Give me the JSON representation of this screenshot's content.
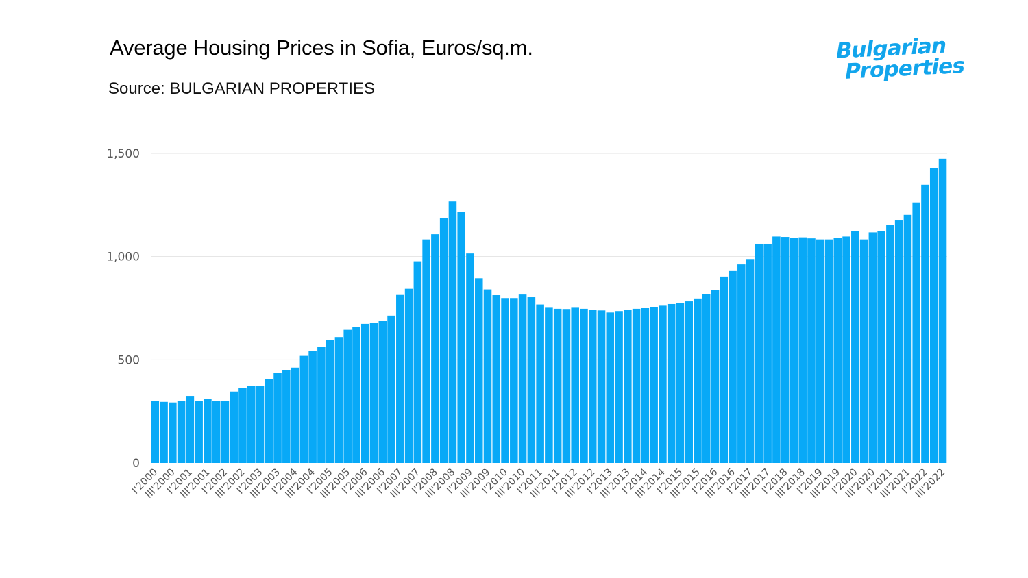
{
  "title": "Average Housing Prices in Sofia, Euros/sq.m.",
  "subtitle": "Source: BULGARIAN PROPERTIES",
  "logo": {
    "line1": "Bulgarian",
    "line2": "Properties",
    "color": "#12a5ec"
  },
  "chart_data": {
    "type": "bar",
    "title": "Average Housing Prices in Sofia, Euros/sq.m.",
    "xlabel": "",
    "ylabel": "",
    "ylim": [
      0,
      1500
    ],
    "y_ticks": [
      0,
      500,
      1000,
      1500
    ],
    "y_tick_labels": [
      "0",
      "500",
      "1,000",
      "1,500"
    ],
    "grid": true,
    "bar_color": "#08a9f7",
    "x_tick_labels": [
      "I'2000",
      "III'2000",
      "I'2001",
      "III'2001",
      "I'2002",
      "III'2002",
      "I'2003",
      "III'2003",
      "I'2004",
      "III'2004",
      "I'2005",
      "III'2005",
      "I'2006",
      "III'2006",
      "I'2007",
      "III'2007",
      "I'2008",
      "III'2008",
      "I'2009",
      "III'2009",
      "I'2010",
      "III'2010",
      "I'2011",
      "III'2011",
      "I'2012",
      "III'2012",
      "I'2013",
      "III'2013",
      "I'2014",
      "III'2014",
      "I'2015",
      "III'2015",
      "I'2016",
      "III'2016",
      "I'2017",
      "III'2017",
      "I'2018",
      "III'2018",
      "I'2019",
      "III'2019",
      "I'2020",
      "III'2020",
      "I'2021",
      "III'2021",
      "I'2022",
      "III'2022"
    ],
    "values": [
      299,
      296,
      293,
      301,
      325,
      301,
      310,
      299,
      301,
      346,
      365,
      372,
      374,
      407,
      435,
      449,
      462,
      519,
      544,
      562,
      595,
      610,
      645,
      659,
      674,
      678,
      687,
      714,
      814,
      844,
      977,
      1083,
      1108,
      1185,
      1267,
      1217,
      1015,
      895,
      841,
      813,
      799,
      799,
      816,
      803,
      768,
      752,
      747,
      746,
      752,
      747,
      742,
      739,
      729,
      736,
      741,
      747,
      750,
      756,
      762,
      770,
      774,
      783,
      797,
      817,
      837,
      903,
      933,
      962,
      988,
      1062,
      1062,
      1097,
      1095,
      1089,
      1093,
      1088,
      1083,
      1083,
      1091,
      1097,
      1123,
      1083,
      1117,
      1123,
      1153,
      1178,
      1202,
      1262,
      1348,
      1428,
      1474
    ]
  }
}
